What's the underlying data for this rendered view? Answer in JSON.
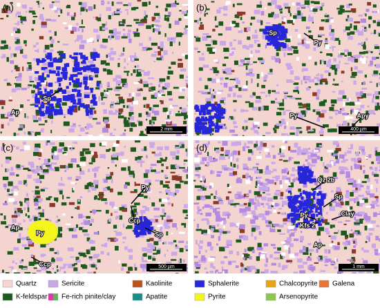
{
  "panels": [
    {
      "label": "(a)",
      "annotations": [
        "Sp",
        "Ap"
      ],
      "scale_bar": "2 mm"
    },
    {
      "label": "(b)",
      "annotations": [
        "Sp",
        "Py",
        "Py",
        "Apy"
      ],
      "scale_bar": "400 µm"
    },
    {
      "label": "(c)",
      "annotations": [
        "Ap",
        "Py",
        "Py",
        "Ccp",
        "Sp",
        "Ccp"
      ],
      "scale_bar": "500 µm"
    },
    {
      "label": "(d)",
      "annotations": [
        "Qz 2b",
        "Sp",
        "Py",
        "Clay",
        "Kfs 2",
        "Ap"
      ],
      "scale_bar": "1 mm"
    }
  ],
  "legend": [
    {
      "name": "Quartz",
      "color": "#f6d6d0"
    },
    {
      "name": "Sericite",
      "color": "#c9a8e8"
    },
    {
      "name": "Kaolinite",
      "color": "#b8541c"
    },
    {
      "name": "Sphalerite",
      "color": "#2727d9"
    },
    {
      "name": "Chalcopyrite",
      "color": "#e8a317"
    },
    {
      "name": "Galena",
      "color": "#e8743a"
    },
    {
      "name": "K-feldspar",
      "color": "#1e5a1e"
    },
    {
      "name": "Fe-rich pinite/clay",
      "colors": [
        "#d43fa0",
        "#5cb85c"
      ]
    },
    {
      "name": "Apatite",
      "color": "#1a8c8c"
    },
    {
      "name": "Pyrite",
      "color": "#f5f51e"
    },
    {
      "name": "Arsenopyrite",
      "color": "#8cc84b"
    }
  ]
}
